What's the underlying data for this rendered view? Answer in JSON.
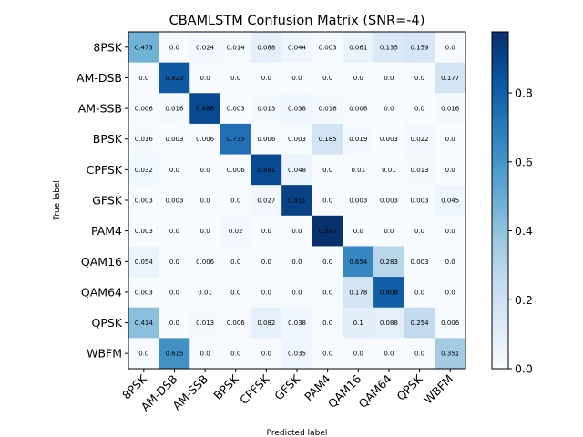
{
  "chart_data": {
    "type": "heatmap",
    "title": "CBAMLSTM Confusion Matrix (SNR=-4)",
    "xlabel": "Predicted label",
    "ylabel": "True label",
    "labels": [
      "8PSK",
      "AM-DSB",
      "AM-SSB",
      "BPSK",
      "CPFSK",
      "GFSK",
      "PAM4",
      "QAM16",
      "QAM64",
      "QPSK",
      "WBFM"
    ],
    "matrix": [
      [
        0.473,
        0.0,
        0.024,
        0.014,
        0.088,
        0.044,
        0.003,
        0.061,
        0.135,
        0.159,
        0.0
      ],
      [
        0.0,
        0.823,
        0.0,
        0.0,
        0.0,
        0.0,
        0.0,
        0.0,
        0.0,
        0.0,
        0.177
      ],
      [
        0.006,
        0.016,
        0.886,
        0.003,
        0.013,
        0.038,
        0.016,
        0.006,
        0.0,
        0.0,
        0.016
      ],
      [
        0.016,
        0.003,
        0.006,
        0.735,
        0.006,
        0.003,
        0.185,
        0.019,
        0.003,
        0.022,
        0.0
      ],
      [
        0.032,
        0.0,
        0.0,
        0.006,
        0.881,
        0.048,
        0.0,
        0.01,
        0.01,
        0.013,
        0.0
      ],
      [
        0.003,
        0.003,
        0.0,
        0.0,
        0.027,
        0.911,
        0.0,
        0.003,
        0.003,
        0.003,
        0.045
      ],
      [
        0.003,
        0.0,
        0.0,
        0.02,
        0.0,
        0.0,
        0.977,
        0.0,
        0.0,
        0.0,
        0.0
      ],
      [
        0.054,
        0.0,
        0.006,
        0.0,
        0.0,
        0.0,
        0.0,
        0.654,
        0.283,
        0.003,
        0.0
      ],
      [
        0.003,
        0.0,
        0.01,
        0.0,
        0.0,
        0.0,
        0.0,
        0.178,
        0.808,
        0.0,
        0.0
      ],
      [
        0.414,
        0.0,
        0.013,
        0.006,
        0.082,
        0.038,
        0.0,
        0.1,
        0.088,
        0.254,
        0.006
      ],
      [
        0.0,
        0.615,
        0.0,
        0.0,
        0.0,
        0.035,
        0.0,
        0.0,
        0.0,
        0.0,
        0.351
      ]
    ],
    "value_labels": [
      [
        "0.473",
        "0.0",
        "0.024",
        "0.014",
        "0.088",
        "0.044",
        "0.003",
        "0.061",
        "0.135",
        "0.159",
        "0.0"
      ],
      [
        "0.0",
        "0.823",
        "0.0",
        "0.0",
        "0.0",
        "0.0",
        "0.0",
        "0.0",
        "0.0",
        "0.0",
        "0.177"
      ],
      [
        "0.006",
        "0.016",
        "0.886",
        "0.003",
        "0.013",
        "0.038",
        "0.016",
        "0.006",
        "0.0",
        "0.0",
        "0.016"
      ],
      [
        "0.016",
        "0.003",
        "0.006",
        "0.735",
        "0.006",
        "0.003",
        "0.185",
        "0.019",
        "0.003",
        "0.022",
        "0.0"
      ],
      [
        "0.032",
        "0.0",
        "0.0",
        "0.006",
        "0.881",
        "0.048",
        "0.0",
        "0.01",
        "0.01",
        "0.013",
        "0.0"
      ],
      [
        "0.003",
        "0.003",
        "0.0",
        "0.0",
        "0.027",
        "0.911",
        "0.0",
        "0.003",
        "0.003",
        "0.003",
        "0.045"
      ],
      [
        "0.003",
        "0.0",
        "0.0",
        "0.02",
        "0.0",
        "0.0",
        "0.977",
        "0.0",
        "0.0",
        "0.0",
        "0.0"
      ],
      [
        "0.054",
        "0.0",
        "0.006",
        "0.0",
        "0.0",
        "0.0",
        "0.0",
        "0.654",
        "0.283",
        "0.003",
        "0.0"
      ],
      [
        "0.003",
        "0.0",
        "0.01",
        "0.0",
        "0.0",
        "0.0",
        "0.0",
        "0.178",
        "0.808",
        "0.0",
        "0.0"
      ],
      [
        "0.414",
        "0.0",
        "0.013",
        "0.006",
        "0.082",
        "0.038",
        "0.0",
        "0.1",
        "0.088",
        "0.254",
        "0.006"
      ],
      [
        "0.0",
        "0.615",
        "0.0",
        "0.0",
        "0.0",
        "0.035",
        "0.0",
        "0.0",
        "0.0",
        "0.0",
        "0.351"
      ]
    ],
    "colormap": "Blues",
    "colorbar": {
      "range": [
        0,
        0.977
      ],
      "ticks": [
        0.0,
        0.2,
        0.4,
        0.6,
        0.8
      ],
      "tick_labels": [
        "0.0",
        "0.2",
        "0.4",
        "0.6",
        "0.8"
      ]
    },
    "colors": {
      "low": "#f7fbff",
      "high": "#08306b",
      "text_light": "#ffffff",
      "text_dark": "#000000"
    }
  }
}
